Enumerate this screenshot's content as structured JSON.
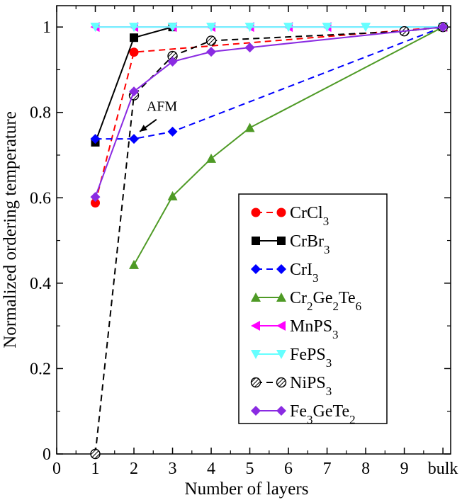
{
  "chart_data": {
    "type": "line",
    "title": "",
    "xlabel": "Number of layers",
    "ylabel": "Normalized ordering temperature",
    "xlim": [
      0,
      10.2
    ],
    "ylim": [
      0,
      1.05
    ],
    "x_ticks": [
      {
        "value": 0,
        "label": "0"
      },
      {
        "value": 1,
        "label": "1"
      },
      {
        "value": 2,
        "label": "2"
      },
      {
        "value": 3,
        "label": "3"
      },
      {
        "value": 4,
        "label": "4"
      },
      {
        "value": 5,
        "label": "5"
      },
      {
        "value": 6,
        "label": "6"
      },
      {
        "value": 7,
        "label": "7"
      },
      {
        "value": 8,
        "label": "8"
      },
      {
        "value": 9,
        "label": "9"
      },
      {
        "value": 10,
        "label": "bulk"
      }
    ],
    "y_ticks": [
      {
        "value": 0,
        "label": "0"
      },
      {
        "value": 0.2,
        "label": "0.2"
      },
      {
        "value": 0.4,
        "label": "0.4"
      },
      {
        "value": 0.6,
        "label": "0.6"
      },
      {
        "value": 0.8,
        "label": "0.8"
      },
      {
        "value": 1,
        "label": "1"
      }
    ],
    "series": [
      {
        "id": "crcl3",
        "name": "CrCl",
        "sub": "3",
        "color": "#ff0000",
        "dash": "dashed",
        "marker": "circle",
        "x": [
          1,
          2,
          10
        ],
        "y": [
          0.588,
          0.941,
          1.0
        ]
      },
      {
        "id": "crbr3",
        "name": "CrBr",
        "sub": "3",
        "color": "#000000",
        "dash": "solid",
        "marker": "square",
        "x": [
          1,
          2,
          3
        ],
        "y": [
          0.73,
          0.975,
          1.0
        ]
      },
      {
        "id": "cri3",
        "name": "CrI",
        "sub": "3",
        "color": "#0000ff",
        "dash": "dashed",
        "marker": "diamond",
        "x": [
          1,
          2,
          3,
          10
        ],
        "y": [
          0.738,
          0.738,
          0.755,
          1.0
        ]
      },
      {
        "id": "cr2ge2te6",
        "name": "Cr2Ge2Te6",
        "color": "#4e9a25",
        "dash": "solid",
        "marker": "triangle-up",
        "x": [
          2,
          3,
          4,
          5,
          10
        ],
        "y": [
          0.443,
          0.604,
          0.692,
          0.764,
          1.0
        ]
      },
      {
        "id": "mnps3",
        "name": "MnPS",
        "sub": "3",
        "color": "#ff00ff",
        "dash": "solid",
        "marker": "triangle-left",
        "x": [
          1,
          2,
          3,
          4,
          5,
          6,
          7,
          10
        ],
        "y": [
          1.0,
          1.0,
          1.0,
          1.0,
          1.0,
          1.0,
          1.0,
          1.0
        ]
      },
      {
        "id": "feps3",
        "name": "FePS",
        "sub": "3",
        "color": "#66ffff",
        "dash": "solid",
        "marker": "triangle-down",
        "x": [
          1,
          2,
          3,
          4,
          5,
          6,
          7,
          8,
          10
        ],
        "y": [
          1.0,
          1.0,
          1.0,
          1.0,
          1.0,
          1.0,
          1.0,
          1.0,
          1.0
        ]
      },
      {
        "id": "nips3",
        "name": "NiPS",
        "sub": "3",
        "color": "#000000",
        "dash": "dashed",
        "marker": "hatched-circle",
        "x": [
          1,
          2,
          3,
          4,
          9,
          10
        ],
        "y": [
          0.0,
          0.84,
          0.932,
          0.968,
          0.99,
          1.0
        ]
      },
      {
        "id": "fe3gete2",
        "name": "Fe3GeTe2",
        "color": "#8a2be2",
        "dash": "solid",
        "marker": "diamond",
        "x": [
          1,
          2,
          3,
          4,
          5,
          10
        ],
        "y": [
          0.602,
          0.849,
          0.919,
          0.942,
          0.952,
          1.0
        ]
      }
    ],
    "annotations": [
      {
        "text": "AFM",
        "x": 2.4,
        "y": 0.81
      }
    ],
    "legend": {
      "placement": "center-right",
      "entries": [
        "CrCl3",
        "CrBr3",
        "CrI3",
        "Cr2Ge2Te6",
        "MnPS3",
        "FePS3",
        "NiPS3",
        "Fe3GeTe2"
      ]
    }
  }
}
